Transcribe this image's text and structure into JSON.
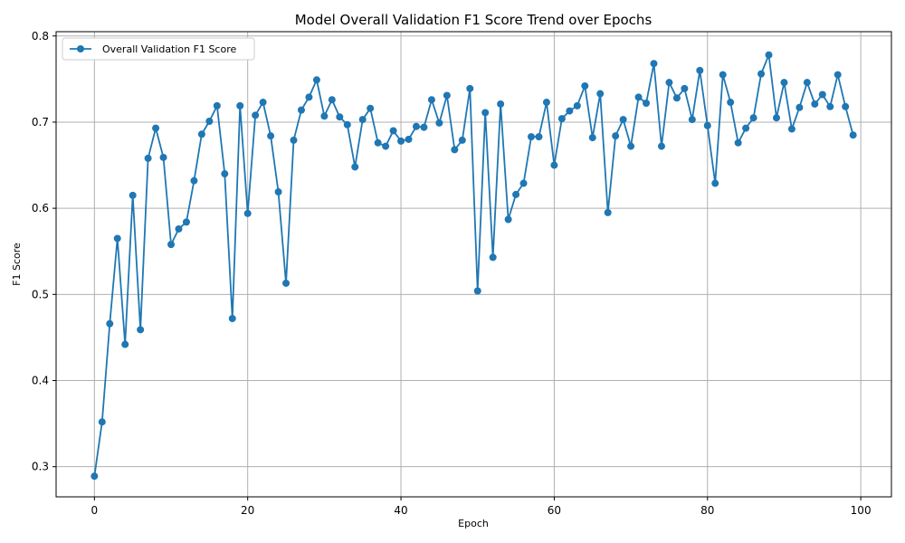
{
  "chart_data": {
    "type": "line",
    "title": "Model Overall Validation F1 Score Trend over Epochs",
    "xlabel": "Epoch",
    "ylabel": "F1 Score",
    "xlim": [
      -5,
      104
    ],
    "ylim": [
      0.265,
      0.805
    ],
    "xticks": [
      0,
      20,
      40,
      60,
      80,
      100
    ],
    "yticks": [
      0.3,
      0.4,
      0.5,
      0.6,
      0.7,
      0.8
    ],
    "grid": true,
    "legend_position": "top-left",
    "line_color": "#1f77b4",
    "series": [
      {
        "name": "Overall Validation F1 Score",
        "x": [
          0,
          1,
          2,
          3,
          4,
          5,
          6,
          7,
          8,
          9,
          10,
          11,
          12,
          13,
          14,
          15,
          16,
          17,
          18,
          19,
          20,
          21,
          22,
          23,
          24,
          25,
          26,
          27,
          28,
          29,
          30,
          31,
          32,
          33,
          34,
          35,
          36,
          37,
          38,
          39,
          40,
          41,
          42,
          43,
          44,
          45,
          46,
          47,
          48,
          49,
          50,
          51,
          52,
          53,
          54,
          55,
          56,
          57,
          58,
          59,
          60,
          61,
          62,
          63,
          64,
          65,
          66,
          67,
          68,
          69,
          70,
          71,
          72,
          73,
          74,
          75,
          76,
          77,
          78,
          79,
          80,
          81,
          82,
          83,
          84,
          85,
          86,
          87,
          88,
          89,
          90,
          91,
          92,
          93,
          94,
          95,
          96,
          97,
          98,
          99
        ],
        "values": [
          0.289,
          0.352,
          0.466,
          0.565,
          0.442,
          0.615,
          0.459,
          0.658,
          0.693,
          0.659,
          0.558,
          0.576,
          0.584,
          0.632,
          0.686,
          0.701,
          0.719,
          0.64,
          0.472,
          0.719,
          0.594,
          0.708,
          0.723,
          0.684,
          0.619,
          0.513,
          0.679,
          0.714,
          0.729,
          0.749,
          0.707,
          0.726,
          0.706,
          0.697,
          0.648,
          0.703,
          0.716,
          0.676,
          0.672,
          0.69,
          0.678,
          0.68,
          0.695,
          0.694,
          0.726,
          0.699,
          0.731,
          0.668,
          0.679,
          0.739,
          0.504,
          0.711,
          0.543,
          0.721,
          0.587,
          0.616,
          0.629,
          0.683,
          0.683,
          0.723,
          0.65,
          0.704,
          0.713,
          0.719,
          0.742,
          0.682,
          0.733,
          0.595,
          0.684,
          0.703,
          0.672,
          0.729,
          0.722,
          0.768,
          0.672,
          0.746,
          0.728,
          0.739,
          0.703,
          0.76,
          0.696,
          0.629,
          0.755,
          0.723,
          0.676,
          0.693,
          0.705,
          0.756,
          0.778,
          0.705,
          0.746,
          0.692,
          0.717,
          0.746,
          0.721,
          0.732,
          0.718,
          0.755,
          0.718,
          0.685
        ]
      }
    ]
  }
}
